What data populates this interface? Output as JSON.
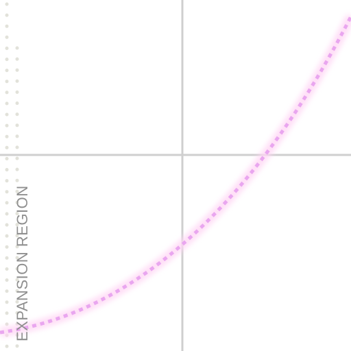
{
  "region_label": "EXPANSION REGION",
  "colors": {
    "background": "#ffffff",
    "axis_lines": "#cfcfcf",
    "dotted_boundary": "#e2e2da",
    "curve_dashes": "#e9a6ef",
    "curve_glow": "#ffd6f4",
    "label_text": "#8f8f8f"
  },
  "elements": {
    "curve_style": "dashed line with soft pink glow",
    "boundary_style": "dotted vertical lines along the left edge"
  }
}
